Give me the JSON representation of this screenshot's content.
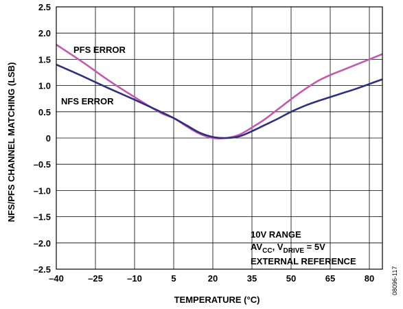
{
  "chart_data": {
    "type": "line",
    "xlabel": "TEMPERATURE (°C)",
    "ylabel": "NFS/PFS CHANNEL MATCHING (LSB)",
    "xlim": [
      -40,
      85
    ],
    "ylim": [
      -2.5,
      2.5
    ],
    "x_ticks": [
      -40,
      -25,
      -10,
      5,
      20,
      35,
      50,
      65,
      80
    ],
    "x_tick_labels": [
      "–40",
      "–25",
      "–10",
      "5",
      "20",
      "35",
      "50",
      "65",
      "80"
    ],
    "y_ticks": [
      2.5,
      2.0,
      1.5,
      1.0,
      0.5,
      0,
      -0.5,
      -1.0,
      -1.5,
      -2.0,
      -2.5
    ],
    "y_tick_labels": [
      "2.5",
      "2.0",
      "1.5",
      "1.0",
      "0.5",
      "0",
      "–0.5",
      "–1.0",
      "–1.5",
      "–2.0",
      "–2.5"
    ],
    "grid": true,
    "series": [
      {
        "name": "PFS ERROR",
        "color": "#c457b0",
        "points": [
          [
            -40,
            1.78
          ],
          [
            -30,
            1.45
          ],
          [
            -20,
            1.1
          ],
          [
            -10,
            0.78
          ],
          [
            0,
            0.48
          ],
          [
            5,
            0.38
          ],
          [
            10,
            0.22
          ],
          [
            15,
            0.08
          ],
          [
            20,
            0.0
          ],
          [
            25,
            0.0
          ],
          [
            30,
            0.06
          ],
          [
            35,
            0.2
          ],
          [
            40,
            0.36
          ],
          [
            45,
            0.55
          ],
          [
            50,
            0.74
          ],
          [
            55,
            0.92
          ],
          [
            60,
            1.08
          ],
          [
            65,
            1.2
          ],
          [
            70,
            1.3
          ],
          [
            75,
            1.4
          ],
          [
            80,
            1.5
          ],
          [
            85,
            1.6
          ]
        ]
      },
      {
        "name": "NFS ERROR",
        "color": "#2e2f7f",
        "points": [
          [
            -40,
            1.4
          ],
          [
            -30,
            1.18
          ],
          [
            -20,
            0.95
          ],
          [
            -10,
            0.73
          ],
          [
            0,
            0.5
          ],
          [
            5,
            0.38
          ],
          [
            10,
            0.24
          ],
          [
            15,
            0.1
          ],
          [
            20,
            0.02
          ],
          [
            25,
            0.0
          ],
          [
            30,
            0.03
          ],
          [
            35,
            0.13
          ],
          [
            40,
            0.25
          ],
          [
            45,
            0.37
          ],
          [
            50,
            0.5
          ],
          [
            55,
            0.61
          ],
          [
            60,
            0.7
          ],
          [
            65,
            0.78
          ],
          [
            70,
            0.86
          ],
          [
            75,
            0.94
          ],
          [
            80,
            1.03
          ],
          [
            85,
            1.12
          ]
        ]
      }
    ],
    "annotations": {
      "pfs_label": "PFS ERROR",
      "nfs_label": "NFS ERROR",
      "box_line1": "10V RANGE",
      "box_av": "AV",
      "box_cc": "CC",
      "box_comma": ", V",
      "box_drive": "DRIVE",
      "box_eq": " = 5V",
      "box_line3": "EXTERNAL REFERENCE"
    },
    "figure_id": "08096-117"
  }
}
